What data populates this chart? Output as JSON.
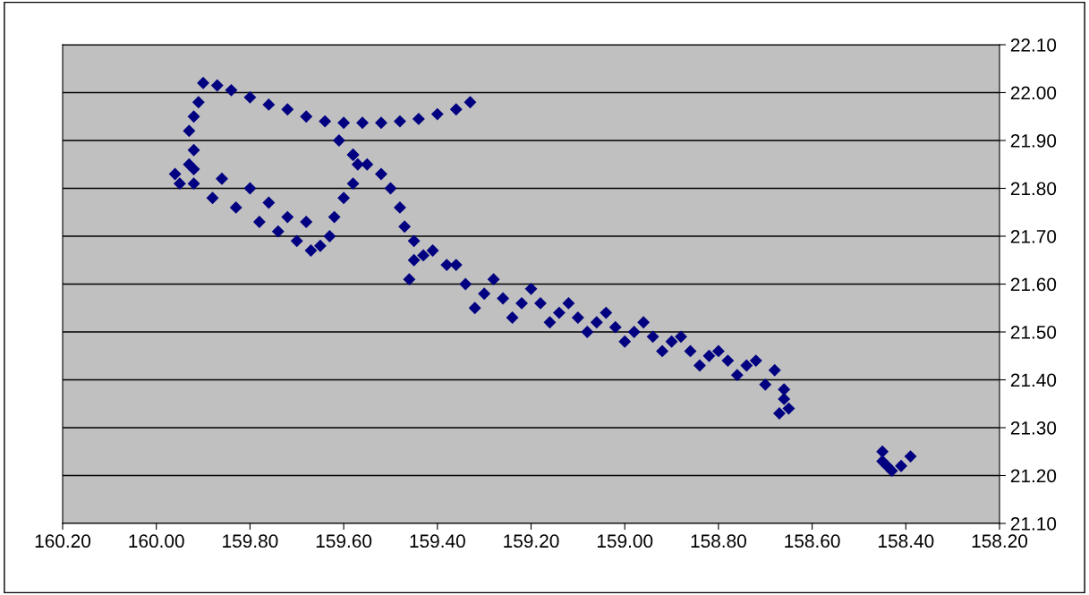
{
  "chart_data": {
    "type": "scatter",
    "marker": "diamond",
    "grid": "y",
    "x": [
      159.33,
      159.36,
      159.4,
      159.44,
      159.48,
      159.52,
      159.56,
      159.6,
      159.64,
      159.68,
      159.72,
      159.76,
      159.8,
      159.84,
      159.87,
      159.9,
      159.91,
      159.92,
      159.93,
      159.92,
      159.93,
      159.92,
      159.96,
      159.95,
      159.92,
      159.88,
      159.86,
      159.83,
      159.8,
      159.78,
      159.76,
      159.74,
      159.72,
      159.7,
      159.68,
      159.67,
      159.65,
      159.63,
      159.62,
      159.6,
      159.58,
      159.57,
      159.58,
      159.61,
      159.58,
      159.55,
      159.52,
      159.5,
      159.48,
      159.47,
      159.45,
      159.43,
      159.46,
      159.45,
      159.41,
      159.38,
      159.36,
      159.34,
      159.32,
      159.3,
      159.28,
      159.26,
      159.24,
      159.22,
      159.2,
      159.18,
      159.16,
      159.14,
      159.12,
      159.1,
      159.08,
      159.06,
      159.04,
      159.02,
      159.0,
      158.98,
      158.96,
      158.94,
      158.92,
      158.9,
      158.88,
      158.86,
      158.84,
      158.82,
      158.8,
      158.78,
      158.76,
      158.74,
      158.72,
      158.7,
      158.68,
      158.66,
      158.67,
      158.65,
      158.66,
      158.45,
      158.45,
      158.44,
      158.43,
      158.41,
      158.39
    ],
    "values": [
      21.98,
      21.965,
      21.955,
      21.945,
      21.94,
      21.937,
      21.937,
      21.937,
      21.94,
      21.95,
      21.965,
      21.975,
      21.99,
      22.005,
      22.015,
      22.02,
      21.98,
      21.95,
      21.92,
      21.88,
      21.85,
      21.81,
      21.83,
      21.81,
      21.84,
      21.78,
      21.82,
      21.76,
      21.8,
      21.73,
      21.77,
      21.71,
      21.74,
      21.69,
      21.73,
      21.67,
      21.68,
      21.7,
      21.74,
      21.78,
      21.81,
      21.85,
      21.87,
      21.9,
      21.87,
      21.85,
      21.83,
      21.8,
      21.76,
      21.72,
      21.69,
      21.66,
      21.61,
      21.65,
      21.67,
      21.64,
      21.64,
      21.6,
      21.55,
      21.58,
      21.61,
      21.57,
      21.53,
      21.56,
      21.59,
      21.56,
      21.52,
      21.54,
      21.56,
      21.53,
      21.5,
      21.52,
      21.54,
      21.51,
      21.48,
      21.5,
      21.52,
      21.49,
      21.46,
      21.48,
      21.49,
      21.46,
      21.43,
      21.45,
      21.46,
      21.44,
      21.41,
      21.43,
      21.44,
      21.39,
      21.42,
      21.38,
      21.33,
      21.34,
      21.36,
      21.25,
      21.23,
      21.22,
      21.21,
      21.22,
      21.24
    ],
    "color": "#000080",
    "xlim": [
      160.2,
      158.2
    ],
    "xticks": [
      {
        "value": 160.2,
        "label": "160.20"
      },
      {
        "value": 160.0,
        "label": "160.00"
      },
      {
        "value": 159.8,
        "label": "159.80"
      },
      {
        "value": 159.6,
        "label": "159.60"
      },
      {
        "value": 159.4,
        "label": "159.40"
      },
      {
        "value": 159.2,
        "label": "159.20"
      },
      {
        "value": 159.0,
        "label": "159.00"
      },
      {
        "value": 158.8,
        "label": "158.80"
      },
      {
        "value": 158.6,
        "label": "158.60"
      },
      {
        "value": 158.4,
        "label": "158.40"
      },
      {
        "value": 158.2,
        "label": "158.20"
      }
    ],
    "ylim": [
      21.1,
      22.1
    ],
    "yticks": [
      {
        "value": 21.1,
        "label": "21.10"
      },
      {
        "value": 21.2,
        "label": "21.20"
      },
      {
        "value": 21.3,
        "label": "21.30"
      },
      {
        "value": 21.4,
        "label": "21.40"
      },
      {
        "value": 21.5,
        "label": "21.50"
      },
      {
        "value": 21.6,
        "label": "21.60"
      },
      {
        "value": 21.7,
        "label": "21.70"
      },
      {
        "value": 21.8,
        "label": "21.80"
      },
      {
        "value": 21.9,
        "label": "21.90"
      },
      {
        "value": 22.0,
        "label": "22.00"
      },
      {
        "value": 22.1,
        "label": "22.10"
      }
    ]
  }
}
